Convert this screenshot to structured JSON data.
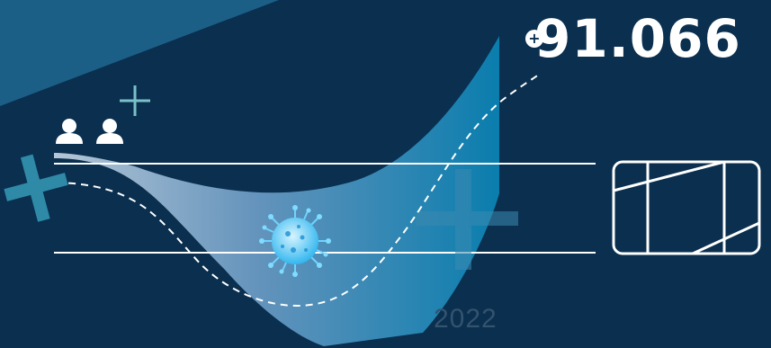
{
  "headline": {
    "sign": "+",
    "value": "91.066"
  },
  "year_label": "2022",
  "icons": [
    "people-icon",
    "plus-icon",
    "virus-icon",
    "rail-car-icon"
  ],
  "colors": {
    "background": "#0a2f4f",
    "accent_light": "#8fb6d8",
    "accent_blue": "#0f7fae",
    "line": "#ffffff",
    "cross": "#2f8aa8"
  }
}
